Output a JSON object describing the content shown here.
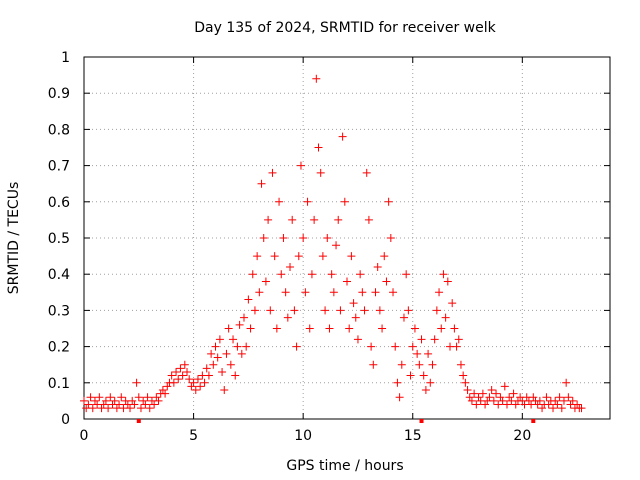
{
  "chart_data": {
    "type": "scatter",
    "title": "Day 135 of 2024, SRMTID for receiver welk",
    "xlabel": "GPS time / hours",
    "ylabel": "SRMTID / TECUs",
    "xlim": [
      0,
      24
    ],
    "ylim": [
      0,
      1
    ],
    "xticks": [
      0,
      5,
      10,
      15,
      20
    ],
    "xtick_labels": [
      "0",
      "5",
      "10",
      "15",
      "20"
    ],
    "yticks": [
      0,
      0.1,
      0.2,
      0.3,
      0.4,
      0.5,
      0.6,
      0.7,
      0.8,
      0.9,
      1
    ],
    "ytick_labels": [
      "0",
      "0.1",
      "0.2",
      "0.3",
      "0.4",
      "0.5",
      "0.6",
      "0.7",
      "0.8",
      "0.9",
      "1"
    ],
    "grid": true,
    "marker": "plus",
    "color": "#ff0000",
    "gap_markers_x": [
      2.5,
      15.4,
      20.5
    ],
    "series": [
      {
        "name": "SRMTID",
        "points": [
          [
            0.0,
            0.05
          ],
          [
            0.1,
            0.03
          ],
          [
            0.2,
            0.04
          ],
          [
            0.3,
            0.06
          ],
          [
            0.4,
            0.03
          ],
          [
            0.5,
            0.05
          ],
          [
            0.6,
            0.04
          ],
          [
            0.7,
            0.06
          ],
          [
            0.8,
            0.03
          ],
          [
            0.9,
            0.04
          ],
          [
            1.0,
            0.05
          ],
          [
            1.1,
            0.03
          ],
          [
            1.2,
            0.06
          ],
          [
            1.3,
            0.04
          ],
          [
            1.4,
            0.05
          ],
          [
            1.5,
            0.03
          ],
          [
            1.6,
            0.04
          ],
          [
            1.7,
            0.06
          ],
          [
            1.8,
            0.03
          ],
          [
            1.9,
            0.05
          ],
          [
            2.0,
            0.04
          ],
          [
            2.1,
            0.03
          ],
          [
            2.2,
            0.05
          ],
          [
            2.3,
            0.04
          ],
          [
            2.4,
            0.1
          ],
          [
            2.5,
            0.06
          ],
          [
            2.6,
            0.03
          ],
          [
            2.7,
            0.05
          ],
          [
            2.8,
            0.04
          ],
          [
            2.9,
            0.06
          ],
          [
            3.0,
            0.03
          ],
          [
            3.1,
            0.05
          ],
          [
            3.2,
            0.04
          ],
          [
            3.3,
            0.06
          ],
          [
            3.4,
            0.05
          ],
          [
            3.5,
            0.07
          ],
          [
            3.6,
            0.08
          ],
          [
            3.7,
            0.07
          ],
          [
            3.8,
            0.09
          ],
          [
            3.9,
            0.1
          ],
          [
            4.0,
            0.12
          ],
          [
            4.1,
            0.1
          ],
          [
            4.2,
            0.13
          ],
          [
            4.3,
            0.11
          ],
          [
            4.4,
            0.14
          ],
          [
            4.5,
            0.12
          ],
          [
            4.6,
            0.15
          ],
          [
            4.7,
            0.13
          ],
          [
            4.8,
            0.11
          ],
          [
            4.9,
            0.09
          ],
          [
            5.0,
            0.1
          ],
          [
            5.1,
            0.08
          ],
          [
            5.2,
            0.11
          ],
          [
            5.3,
            0.09
          ],
          [
            5.4,
            0.12
          ],
          [
            5.5,
            0.1
          ],
          [
            5.6,
            0.14
          ],
          [
            5.7,
            0.12
          ],
          [
            5.8,
            0.18
          ],
          [
            5.9,
            0.15
          ],
          [
            6.0,
            0.2
          ],
          [
            6.1,
            0.17
          ],
          [
            6.2,
            0.22
          ],
          [
            6.3,
            0.13
          ],
          [
            6.4,
            0.08
          ],
          [
            6.5,
            0.18
          ],
          [
            6.6,
            0.25
          ],
          [
            6.7,
            0.15
          ],
          [
            6.8,
            0.22
          ],
          [
            6.9,
            0.12
          ],
          [
            7.0,
            0.2
          ],
          [
            7.1,
            0.26
          ],
          [
            7.2,
            0.18
          ],
          [
            7.3,
            0.28
          ],
          [
            7.4,
            0.2
          ],
          [
            7.5,
            0.33
          ],
          [
            7.6,
            0.25
          ],
          [
            7.7,
            0.4
          ],
          [
            7.8,
            0.3
          ],
          [
            7.9,
            0.45
          ],
          [
            8.0,
            0.35
          ],
          [
            8.1,
            0.65
          ],
          [
            8.2,
            0.5
          ],
          [
            8.3,
            0.38
          ],
          [
            8.4,
            0.55
          ],
          [
            8.5,
            0.3
          ],
          [
            8.6,
            0.68
          ],
          [
            8.7,
            0.45
          ],
          [
            8.8,
            0.25
          ],
          [
            8.9,
            0.6
          ],
          [
            9.0,
            0.4
          ],
          [
            9.1,
            0.5
          ],
          [
            9.2,
            0.35
          ],
          [
            9.3,
            0.28
          ],
          [
            9.4,
            0.42
          ],
          [
            9.5,
            0.55
          ],
          [
            9.6,
            0.3
          ],
          [
            9.7,
            0.2
          ],
          [
            9.8,
            0.45
          ],
          [
            9.9,
            0.7
          ],
          [
            10.0,
            0.5
          ],
          [
            10.1,
            0.35
          ],
          [
            10.2,
            0.6
          ],
          [
            10.3,
            0.25
          ],
          [
            10.4,
            0.4
          ],
          [
            10.5,
            0.55
          ],
          [
            10.6,
            0.94
          ],
          [
            10.7,
            0.75
          ],
          [
            10.8,
            0.68
          ],
          [
            10.9,
            0.45
          ],
          [
            11.0,
            0.3
          ],
          [
            11.1,
            0.5
          ],
          [
            11.2,
            0.25
          ],
          [
            11.3,
            0.4
          ],
          [
            11.4,
            0.35
          ],
          [
            11.5,
            0.48
          ],
          [
            11.6,
            0.55
          ],
          [
            11.7,
            0.3
          ],
          [
            11.8,
            0.78
          ],
          [
            11.9,
            0.6
          ],
          [
            12.0,
            0.38
          ],
          [
            12.1,
            0.25
          ],
          [
            12.2,
            0.45
          ],
          [
            12.3,
            0.32
          ],
          [
            12.4,
            0.28
          ],
          [
            12.5,
            0.22
          ],
          [
            12.6,
            0.4
          ],
          [
            12.7,
            0.35
          ],
          [
            12.8,
            0.3
          ],
          [
            12.9,
            0.68
          ],
          [
            13.0,
            0.55
          ],
          [
            13.1,
            0.2
          ],
          [
            13.2,
            0.15
          ],
          [
            13.3,
            0.35
          ],
          [
            13.4,
            0.42
          ],
          [
            13.5,
            0.3
          ],
          [
            13.6,
            0.25
          ],
          [
            13.7,
            0.45
          ],
          [
            13.8,
            0.38
          ],
          [
            13.9,
            0.6
          ],
          [
            14.0,
            0.5
          ],
          [
            14.1,
            0.35
          ],
          [
            14.2,
            0.2
          ],
          [
            14.3,
            0.1
          ],
          [
            14.4,
            0.06
          ],
          [
            14.5,
            0.15
          ],
          [
            14.6,
            0.28
          ],
          [
            14.7,
            0.4
          ],
          [
            14.8,
            0.3
          ],
          [
            14.9,
            0.12
          ],
          [
            15.0,
            0.2
          ],
          [
            15.1,
            0.25
          ],
          [
            15.2,
            0.18
          ],
          [
            15.3,
            0.15
          ],
          [
            15.4,
            0.22
          ],
          [
            15.5,
            0.12
          ],
          [
            15.6,
            0.08
          ],
          [
            15.7,
            0.18
          ],
          [
            15.8,
            0.1
          ],
          [
            15.9,
            0.15
          ],
          [
            16.0,
            0.22
          ],
          [
            16.1,
            0.3
          ],
          [
            16.2,
            0.35
          ],
          [
            16.3,
            0.25
          ],
          [
            16.4,
            0.4
          ],
          [
            16.5,
            0.28
          ],
          [
            16.6,
            0.38
          ],
          [
            16.7,
            0.2
          ],
          [
            16.8,
            0.32
          ],
          [
            16.9,
            0.25
          ],
          [
            17.0,
            0.2
          ],
          [
            17.1,
            0.22
          ],
          [
            17.2,
            0.15
          ],
          [
            17.3,
            0.12
          ],
          [
            17.4,
            0.1
          ],
          [
            17.5,
            0.08
          ],
          [
            17.6,
            0.06
          ],
          [
            17.7,
            0.05
          ],
          [
            17.8,
            0.07
          ],
          [
            17.9,
            0.04
          ],
          [
            18.0,
            0.06
          ],
          [
            18.1,
            0.05
          ],
          [
            18.2,
            0.07
          ],
          [
            18.3,
            0.04
          ],
          [
            18.4,
            0.05
          ],
          [
            18.5,
            0.06
          ],
          [
            18.6,
            0.08
          ],
          [
            18.7,
            0.05
          ],
          [
            18.8,
            0.07
          ],
          [
            18.9,
            0.04
          ],
          [
            19.0,
            0.06
          ],
          [
            19.1,
            0.05
          ],
          [
            19.2,
            0.09
          ],
          [
            19.3,
            0.04
          ],
          [
            19.4,
            0.06
          ],
          [
            19.5,
            0.05
          ],
          [
            19.6,
            0.07
          ],
          [
            19.7,
            0.04
          ],
          [
            19.8,
            0.05
          ],
          [
            19.9,
            0.06
          ],
          [
            20.0,
            0.05
          ],
          [
            20.1,
            0.04
          ],
          [
            20.2,
            0.06
          ],
          [
            20.3,
            0.05
          ],
          [
            20.4,
            0.04
          ],
          [
            20.5,
            0.06
          ],
          [
            20.6,
            0.05
          ],
          [
            20.7,
            0.04
          ],
          [
            20.8,
            0.05
          ],
          [
            20.9,
            0.03
          ],
          [
            21.0,
            0.04
          ],
          [
            21.1,
            0.06
          ],
          [
            21.2,
            0.04
          ],
          [
            21.3,
            0.05
          ],
          [
            21.4,
            0.03
          ],
          [
            21.5,
            0.05
          ],
          [
            21.6,
            0.04
          ],
          [
            21.7,
            0.06
          ],
          [
            21.8,
            0.03
          ],
          [
            21.9,
            0.05
          ],
          [
            22.0,
            0.1
          ],
          [
            22.1,
            0.06
          ],
          [
            22.2,
            0.04
          ],
          [
            22.3,
            0.05
          ],
          [
            22.4,
            0.03
          ],
          [
            22.5,
            0.04
          ],
          [
            22.6,
            0.03
          ],
          [
            22.7,
            0.03
          ]
        ]
      }
    ]
  }
}
